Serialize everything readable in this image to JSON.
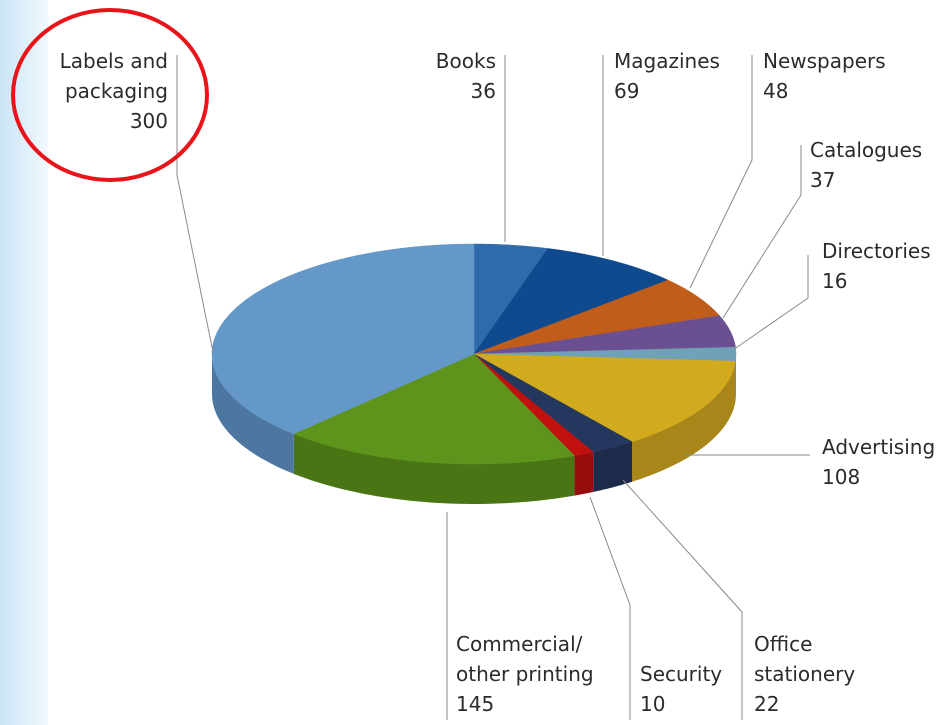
{
  "chart_data": {
    "type": "pie",
    "title": "",
    "slices": [
      {
        "label": "Books",
        "value": 36,
        "color": "#2f6aab",
        "side": "#23558c"
      },
      {
        "label": "Magazines",
        "value": 69,
        "color": "#0f4a8f",
        "side": "#0b3a72"
      },
      {
        "label": "Newspapers",
        "value": 48,
        "color": "#c05d1a",
        "side": "#9a4a14"
      },
      {
        "label": "Catalogues",
        "value": 37,
        "color": "#6a5091",
        "side": "#553f75"
      },
      {
        "label": "Directories",
        "value": 16,
        "color": "#6fa2b6",
        "side": "#588393"
      },
      {
        "label": "Advertising",
        "value": 108,
        "color": "#d2aa1e",
        "side": "#a8861a"
      },
      {
        "label": "Office stationery",
        "value": 22,
        "color": "#24375e",
        "side": "#1c2b4a"
      },
      {
        "label": "Security",
        "value": 10,
        "color": "#c0110f",
        "side": "#970e0c"
      },
      {
        "label": "Commercial/ other printing",
        "value": 145,
        "color": "#5e941c",
        "side": "#4a7515"
      },
      {
        "label": "Labels and packaging",
        "value": 300,
        "color": "#6498c8",
        "side": "#4d76a0"
      }
    ]
  },
  "labels": {
    "labels_packaging": {
      "line1": "Labels and",
      "line2": "packaging",
      "value": "300"
    },
    "books": {
      "line1": "Books",
      "value": "36"
    },
    "magazines": {
      "line1": "Magazines",
      "value": "69"
    },
    "newspapers": {
      "line1": "Newspapers",
      "value": "48"
    },
    "catalogues": {
      "line1": "Catalogues",
      "value": "37"
    },
    "directories": {
      "line1": "Directories",
      "value": "16"
    },
    "advertising": {
      "line1": "Advertising",
      "value": "108"
    },
    "office": {
      "line1": "Office",
      "line2": "stationery",
      "value": "22"
    },
    "security": {
      "line1": "Security",
      "value": "10"
    },
    "commercial": {
      "line1": "Commercial/",
      "line2": "other printing",
      "value": "145"
    }
  },
  "highlight": {
    "target": "Labels and packaging",
    "color": "#e8141a"
  }
}
